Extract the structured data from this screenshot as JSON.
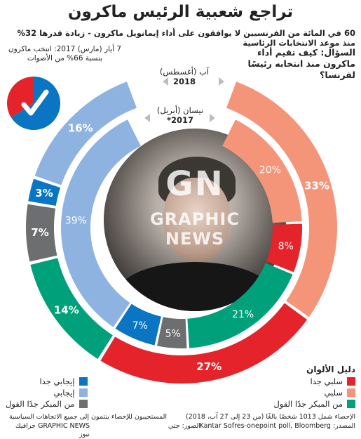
{
  "title": "تراجع شعبية الرئيس ماكرون",
  "subtitle": "60 في المائة من الفرنسيين لا يوافقون على أداء إيمانويل ماكرون - زيادة قدرها 32% منذ موعد الانتخابات الرئاسية",
  "election_note": "7 أيار (مارس) 2017: انتخب ماكرون بنسبة 66% من الأصوات",
  "question": "السؤال: كيف تقيم أداء ماكرون منذ انتخابه رئيسًا لفرنسا؟",
  "outer_ring_label": {
    "date": "آب (أغسطس)",
    "year": "2018"
  },
  "inner_ring_label": {
    "date": "نيسان (أبريل)",
    "year": "2017*"
  },
  "colors": {
    "very_positive": "#0a75c2",
    "positive": "#8fb3e0",
    "dont_know": "#6d6e70",
    "very_negative": "#e4232a",
    "negative": "#f4957a",
    "somewhat": "#00a07a",
    "ring_bg": "#ffffff"
  },
  "chart_data": {
    "type": "donut",
    "series": [
      {
        "name": "آب (أغسطس) 2018",
        "ring": "outer",
        "slices": [
          {
            "category": "negative",
            "value": 33
          },
          {
            "category": "very_negative",
            "value": 27
          },
          {
            "category": "somewhat",
            "value": 14
          },
          {
            "category": "dont_know",
            "value": 7
          },
          {
            "category": "very_positive",
            "value": 3
          },
          {
            "category": "positive",
            "value": 16
          }
        ]
      },
      {
        "name": "نيسان (أبريل) 2017*",
        "ring": "inner",
        "slices": [
          {
            "category": "negative",
            "value": 20
          },
          {
            "category": "very_negative",
            "value": 8
          },
          {
            "category": "somewhat",
            "value": 21
          },
          {
            "category": "dont_know",
            "value": 5
          },
          {
            "category": "very_positive",
            "value": 7
          },
          {
            "category": "positive",
            "value": 39
          }
        ]
      }
    ],
    "check_pie": {
      "red": 34,
      "blue": 66
    }
  },
  "legend": {
    "title": "دليل الألوان",
    "right": [
      {
        "key": "very_negative",
        "label": "سلبي جدا"
      },
      {
        "key": "negative",
        "label": "سلبي"
      },
      {
        "key": "somewhat",
        "label": "من المبكر جدًا القول"
      }
    ],
    "left": [
      {
        "key": "very_positive",
        "label": "إيجابي جدا"
      },
      {
        "key": "positive",
        "label": "إيجابي"
      },
      {
        "key": "dont_know",
        "label": "من المبكر جدًا القول"
      }
    ]
  },
  "footer": {
    "methodology": "الإحصاء شمل 1013 شخصًا بالغًا (من 23 إلى 27 آب، 2018)",
    "source": "المصدر: Kantar Sofres-onepoint poll, Bloomberg",
    "photo": "الصور: جتي",
    "respondents": "المستجيبون للإحصاء ينتمون إلى جميع الاتجاهات السياسية",
    "credit": "GRAPHIC NEWS جرافيك نيوز"
  },
  "watermark": {
    "gn": "GN",
    "graphic_news": "GRAPHIC NEWS"
  }
}
